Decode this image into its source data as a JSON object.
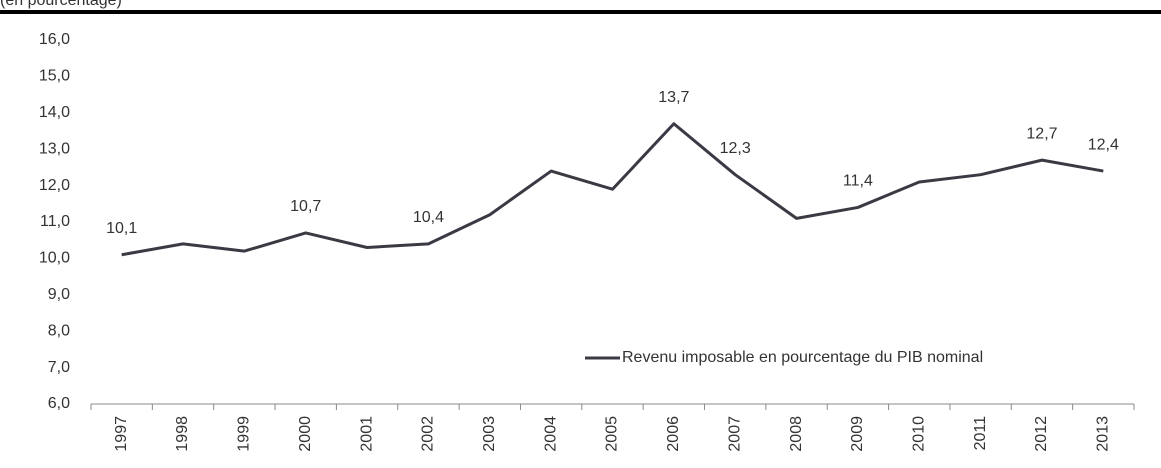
{
  "chart_data": {
    "type": "line",
    "subtitle": "(en pourcentage)",
    "categories": [
      "1997",
      "1998",
      "1999",
      "2000",
      "2001",
      "2002",
      "2003",
      "2004",
      "2005",
      "2006",
      "2007",
      "2008",
      "2009",
      "2010",
      "2011",
      "2012",
      "2013"
    ],
    "series": [
      {
        "name": "Revenu imposable en pourcentage du PIB nominal",
        "color": "#3b3a44",
        "values": [
          10.1,
          10.4,
          10.2,
          10.7,
          10.3,
          10.4,
          11.2,
          12.4,
          11.9,
          13.7,
          12.3,
          11.1,
          11.4,
          12.1,
          12.3,
          12.7,
          12.4
        ],
        "value_labels": [
          "10,1",
          null,
          null,
          "10,7",
          null,
          "10,4",
          null,
          null,
          null,
          "13,7",
          "12,3",
          null,
          "11,4",
          null,
          null,
          "12,7",
          "12,4"
        ]
      }
    ],
    "ylim": [
      6,
      16
    ],
    "yticks": [
      {
        "value": 6,
        "label": "6,0"
      },
      {
        "value": 7,
        "label": "7,0"
      },
      {
        "value": 8,
        "label": "8,0"
      },
      {
        "value": 9,
        "label": "9,0"
      },
      {
        "value": 10,
        "label": "10,0"
      },
      {
        "value": 11,
        "label": "11,0"
      },
      {
        "value": 12,
        "label": "12,0"
      },
      {
        "value": 13,
        "label": "13,0"
      },
      {
        "value": 14,
        "label": "14,0"
      },
      {
        "value": 15,
        "label": "15,0"
      },
      {
        "value": 16,
        "label": "16,0"
      }
    ],
    "grid": false,
    "legend": "lower right"
  }
}
